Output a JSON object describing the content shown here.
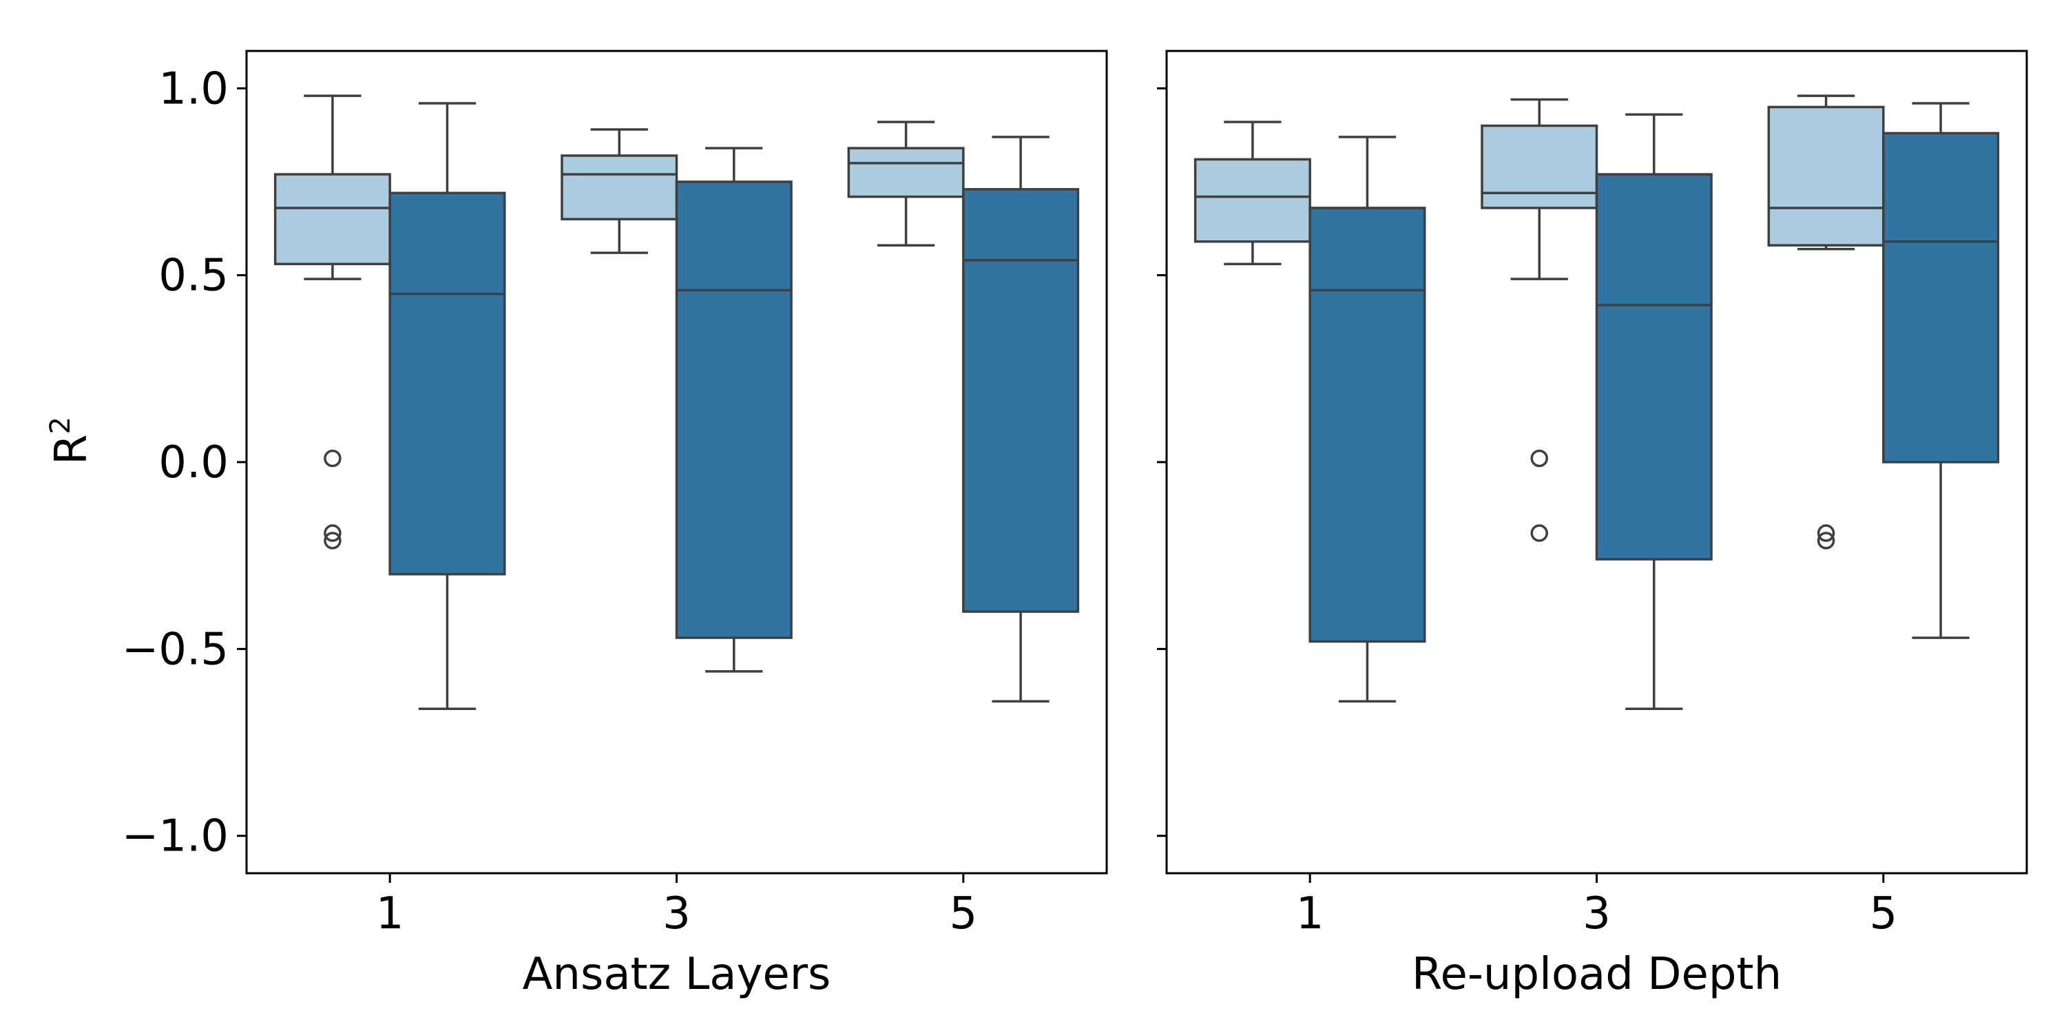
{
  "chart_data": {
    "type": "box",
    "ylabel": "R",
    "ylabel_sup": "2",
    "ylim": [
      -1.1,
      1.1
    ],
    "yticks": [
      1.0,
      0.5,
      0.0,
      -0.5,
      -1.0
    ],
    "ytick_labels": [
      "1.0",
      "0.5",
      "0.0",
      "−0.5",
      "−1.0"
    ],
    "series_colors": [
      "#abcbde",
      "#3274a1"
    ],
    "legend": "none",
    "grid": false,
    "panels": [
      {
        "xlabel": "Ansatz Layers",
        "categories": [
          "1",
          "3",
          "5"
        ],
        "ytick_labels_visible": true,
        "groups": [
          {
            "category": "1",
            "boxes": [
              {
                "whislo": 0.49,
                "q1": 0.53,
                "med": 0.68,
                "q3": 0.77,
                "whishi": 0.98,
                "fliers": [
                  0.01,
                  -0.19,
                  -0.21
                ]
              },
              {
                "whislo": -0.66,
                "q1": -0.3,
                "med": 0.45,
                "q3": 0.72,
                "whishi": 0.96,
                "fliers": []
              }
            ]
          },
          {
            "category": "3",
            "boxes": [
              {
                "whislo": 0.56,
                "q1": 0.65,
                "med": 0.77,
                "q3": 0.82,
                "whishi": 0.89,
                "fliers": []
              },
              {
                "whislo": -0.56,
                "q1": -0.47,
                "med": 0.46,
                "q3": 0.75,
                "whishi": 0.84,
                "fliers": []
              }
            ]
          },
          {
            "category": "5",
            "boxes": [
              {
                "whislo": 0.58,
                "q1": 0.71,
                "med": 0.8,
                "q3": 0.84,
                "whishi": 0.91,
                "fliers": []
              },
              {
                "whislo": -0.64,
                "q1": -0.4,
                "med": 0.54,
                "q3": 0.73,
                "whishi": 0.87,
                "fliers": []
              }
            ]
          }
        ]
      },
      {
        "xlabel": "Re-upload Depth",
        "categories": [
          "1",
          "3",
          "5"
        ],
        "ytick_labels_visible": false,
        "groups": [
          {
            "category": "1",
            "boxes": [
              {
                "whislo": 0.53,
                "q1": 0.59,
                "med": 0.71,
                "q3": 0.81,
                "whishi": 0.91,
                "fliers": []
              },
              {
                "whislo": -0.64,
                "q1": -0.48,
                "med": 0.46,
                "q3": 0.68,
                "whishi": 0.87,
                "fliers": []
              }
            ]
          },
          {
            "category": "3",
            "boxes": [
              {
                "whislo": 0.49,
                "q1": 0.68,
                "med": 0.72,
                "q3": 0.9,
                "whishi": 0.97,
                "fliers": [
                  0.01,
                  -0.19
                ]
              },
              {
                "whislo": -0.66,
                "q1": -0.26,
                "med": 0.42,
                "q3": 0.77,
                "whishi": 0.93,
                "fliers": []
              }
            ]
          },
          {
            "category": "5",
            "boxes": [
              {
                "whislo": 0.57,
                "q1": 0.58,
                "med": 0.68,
                "q3": 0.95,
                "whishi": 0.98,
                "fliers": [
                  -0.19,
                  -0.21
                ]
              },
              {
                "whislo": -0.47,
                "q1": -0.0,
                "med": 0.59,
                "q3": 0.88,
                "whishi": 0.96,
                "fliers": []
              }
            ]
          }
        ]
      }
    ]
  }
}
